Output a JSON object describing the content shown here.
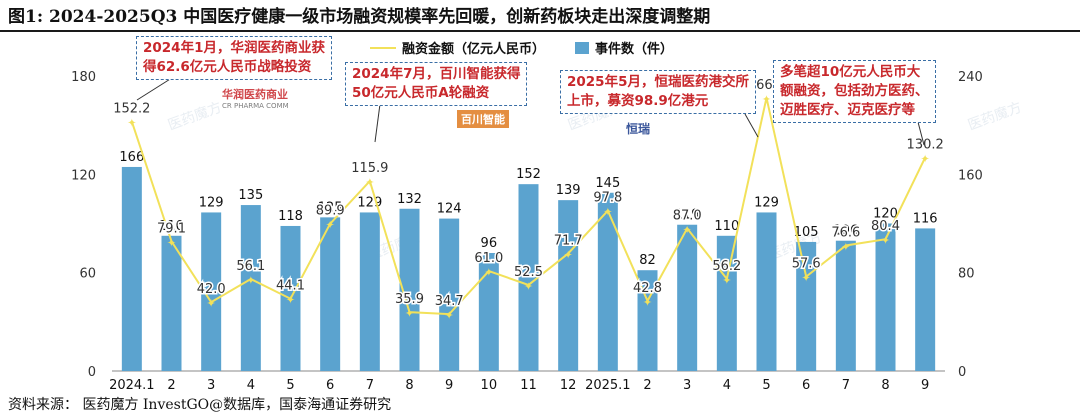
{
  "figure": {
    "title": "图1:  2024-2025Q3 中国医疗健康一级市场融资规模率先回暖，创新药板块走出深度调整期",
    "source": "资料来源：  医药魔方 InvestGO@数据库，国泰海通证券研究"
  },
  "chart_data": {
    "type": "bar",
    "categories": [
      "2024.1",
      "2",
      "3",
      "4",
      "5",
      "6",
      "7",
      "8",
      "9",
      "10",
      "11",
      "12",
      "2025.1",
      "2",
      "3",
      "4",
      "5",
      "6",
      "7",
      "8",
      "9"
    ],
    "series": [
      {
        "name": "融资金额（亿元人民币）",
        "type": "line",
        "axis": "left",
        "color": "#f2e15a",
        "values": [
          152.2,
          79.1,
          42.0,
          56.1,
          44.1,
          89.9,
          115.9,
          35.9,
          34.7,
          61.0,
          52.5,
          71.7,
          97.8,
          42.8,
          87.0,
          56.2,
          166.7,
          57.6,
          76.6,
          80.4,
          130.2
        ],
        "labels": [
          "152.2",
          "79.1",
          "42.0",
          "56.1",
          "44.1",
          "89.9",
          "115.9",
          "35.9",
          "34.7",
          "61.0",
          "52.5",
          "71.7",
          "97.8",
          "42.8",
          "87.0",
          "56.2",
          "166.7",
          "57.6",
          "76.6",
          "80.4",
          "130.2"
        ]
      },
      {
        "name": "事件数（件）",
        "type": "bar",
        "axis": "right",
        "color": "#5ba3cf",
        "values": [
          166,
          110,
          129,
          135,
          118,
          125,
          129,
          132,
          124,
          96,
          152,
          139,
          145,
          82,
          119,
          110,
          129,
          105,
          106,
          120,
          116
        ],
        "labels": [
          "166",
          "110",
          "129",
          "135",
          "118",
          "125",
          "129",
          "132",
          "124",
          "96",
          "152",
          "139",
          "145",
          "82",
          "119",
          "110",
          "129",
          "105",
          "106",
          "120",
          "116"
        ]
      }
    ],
    "y_left": {
      "min": 0,
      "max": 180,
      "ticks": [
        "0",
        "60",
        "120",
        "180"
      ]
    },
    "y_right": {
      "min": 0,
      "max": 240,
      "ticks": [
        "0",
        "80",
        "160",
        "240"
      ]
    },
    "legend": "top-center",
    "grid": false,
    "annotations": [
      {
        "text": "2024年1月，华润医药商业获\n得62.6亿元人民币战略投资",
        "category_index": 0
      },
      {
        "text": "2024年7月，百川智能获得\n50亿元人民币A轮融资",
        "category_index": 6
      },
      {
        "text": "2025年5月，恒瑞医药港交所\n上市，募资98.9亿港元",
        "category_index": 16
      },
      {
        "text": "多笔超10亿元人民币大\n额融资，包括劲方医药、\n迈胜医疗、迈克医疗等",
        "category_index": 20
      }
    ],
    "logos": [
      {
        "text": "华润医药商业",
        "sub": "CR PHARMA COMM",
        "color": "#c8282c"
      },
      {
        "text": "百川智能",
        "color": "#d35400"
      },
      {
        "text": "恒瑞",
        "color": "#1a3a8a"
      }
    ],
    "watermark": "医药魔方"
  }
}
